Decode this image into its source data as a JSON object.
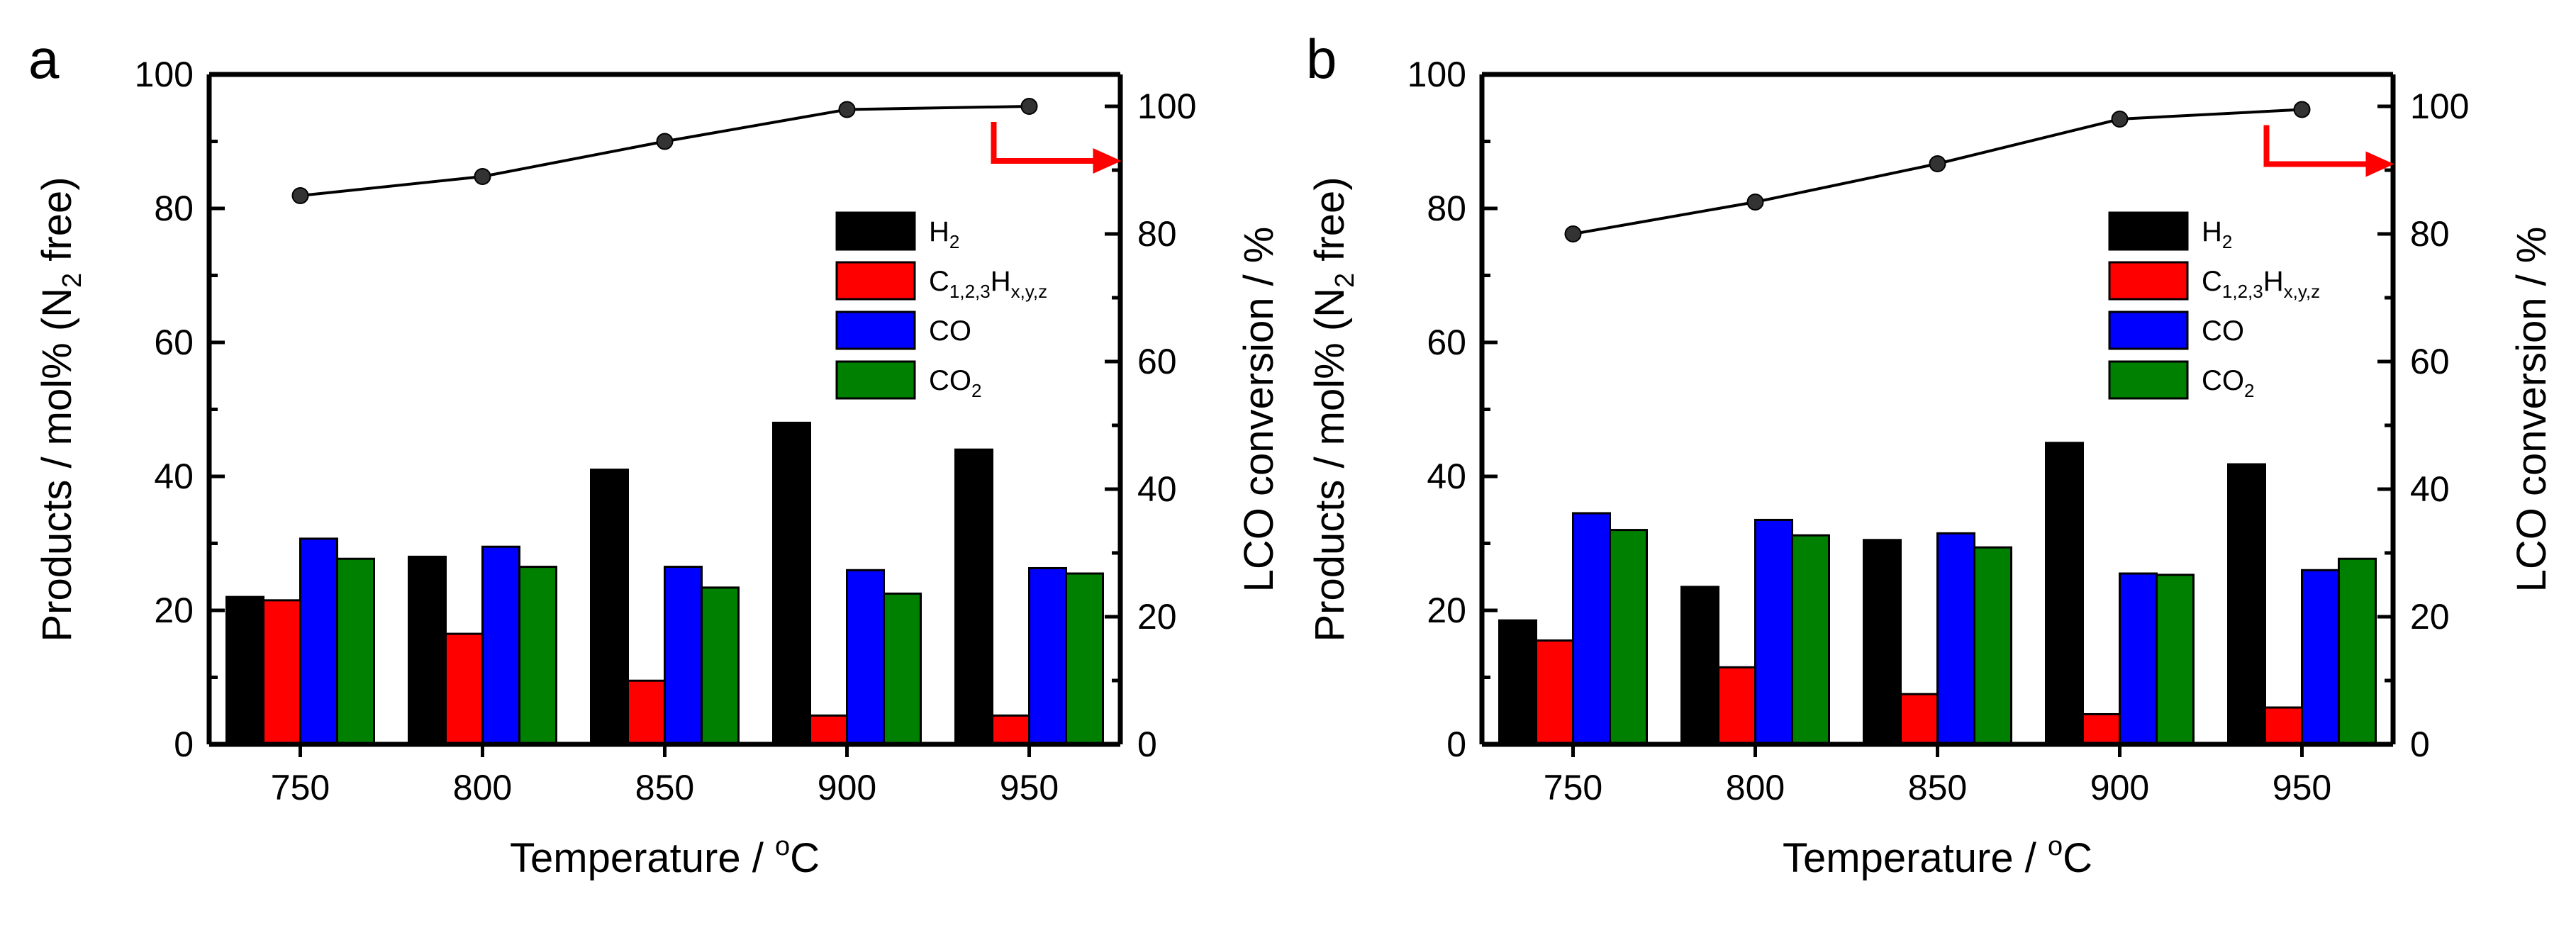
{
  "colors": {
    "H2": "#000000",
    "C123Hxyz": "#ff0000",
    "CO": "#0000ff",
    "CO2": "#008000",
    "conversion_line": "#000000",
    "arrow": "#ff0000"
  },
  "chart_data": [
    {
      "panel": "a",
      "type": "bar",
      "categories": [
        "750",
        "800",
        "850",
        "900",
        "950"
      ],
      "series": [
        {
          "key": "H2",
          "name": "H2",
          "values": [
            22,
            28,
            41,
            48,
            44
          ]
        },
        {
          "key": "C123Hxyz",
          "name": "C1,2,3Hx,y,z",
          "values": [
            21.5,
            16.5,
            9.5,
            4.3,
            4.3
          ]
        },
        {
          "key": "CO",
          "name": "CO",
          "values": [
            30.7,
            29.5,
            26.5,
            26,
            26.3
          ]
        },
        {
          "key": "CO2",
          "name": "CO2",
          "values": [
            27.7,
            26.5,
            23.4,
            22.5,
            25.5
          ]
        }
      ],
      "line_series": {
        "name": "LCO conversion",
        "axis": "right",
        "values": [
          86,
          89,
          94.5,
          99.5,
          100
        ]
      },
      "xlabel": "Temperature / oC",
      "ylabel": "Products / mol% (N2 free)",
      "y2label": "LCO conversion / %",
      "ylim": [
        0,
        100
      ],
      "y2lim": [
        0,
        105
      ],
      "yticks": [
        "0",
        "20",
        "40",
        "60",
        "80",
        "100"
      ],
      "y2ticks": [
        "0",
        "20",
        "40",
        "60",
        "80",
        "100"
      ],
      "legend_position": "upper-right",
      "arrow_direction": "right"
    },
    {
      "panel": "b",
      "type": "bar",
      "categories": [
        "750",
        "800",
        "850",
        "900",
        "950"
      ],
      "series": [
        {
          "key": "H2",
          "name": "H2",
          "values": [
            18.5,
            23.5,
            30.5,
            45,
            41.8
          ]
        },
        {
          "key": "C123Hxyz",
          "name": "C1,2,3Hx,y,z",
          "values": [
            15.5,
            11.5,
            7.5,
            4.5,
            5.5
          ]
        },
        {
          "key": "CO",
          "name": "CO",
          "values": [
            34.5,
            33.5,
            31.5,
            25.5,
            26
          ]
        },
        {
          "key": "CO2",
          "name": "CO2",
          "values": [
            32,
            31.2,
            29.4,
            25.3,
            27.7
          ]
        }
      ],
      "line_series": {
        "name": "LCO conversion",
        "axis": "right",
        "values": [
          80,
          85,
          91,
          98,
          99.5
        ]
      },
      "xlabel": "Temperature / oC",
      "ylabel": "Products / mol% (N2 free)",
      "y2label": "LCO conversion / %",
      "ylim": [
        0,
        100
      ],
      "y2lim": [
        0,
        105
      ],
      "yticks": [
        "0",
        "20",
        "40",
        "60",
        "80",
        "100"
      ],
      "y2ticks": [
        "0",
        "20",
        "40",
        "60",
        "80",
        "100"
      ],
      "legend_position": "upper-right",
      "arrow_direction": "right"
    }
  ],
  "legend_text": {
    "H2": {
      "main": "H",
      "sub": "2"
    },
    "C123Hxyz": {
      "main1": "C",
      "sub1": "1,2,3",
      "main2": "H",
      "sub2": "x,y,z"
    },
    "CO": {
      "main": "CO"
    },
    "CO2": {
      "main": "CO",
      "sub": "2"
    }
  },
  "axis_text": {
    "xlabel_main": "Temperature / ",
    "xlabel_sup": "o",
    "xlabel_end": "C",
    "ylabel_pre": "Products / mol% (N",
    "ylabel_sub": "2",
    "ylabel_post": " free)",
    "y2label": "LCO conversion / %"
  }
}
